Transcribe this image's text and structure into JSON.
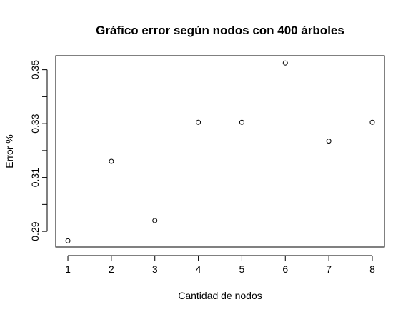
{
  "chart_data": {
    "type": "scatter",
    "title": "Gráfico error según nodos con 400 árboles",
    "xlabel": "Cantidad de nodos",
    "ylabel": "Error %",
    "x": [
      1,
      2,
      3,
      4,
      5,
      6,
      7,
      8
    ],
    "y": [
      0.2865,
      0.316,
      0.294,
      0.3305,
      0.3305,
      0.3525,
      0.3235,
      0.3305
    ],
    "x_ticks": [
      "1",
      "2",
      "3",
      "4",
      "5",
      "6",
      "7",
      "8"
    ],
    "y_ticks": [
      "0.29",
      "0.31",
      "0.33",
      "0.35"
    ],
    "y_tick_values": [
      0.29,
      0.31,
      0.33,
      0.35
    ],
    "y_minor_tick_values": [
      0.3,
      0.32,
      0.34
    ],
    "xlim": [
      0.72,
      8.28
    ],
    "ylim": [
      0.2842,
      0.3552
    ],
    "grid": false,
    "marker": "open-circle"
  }
}
